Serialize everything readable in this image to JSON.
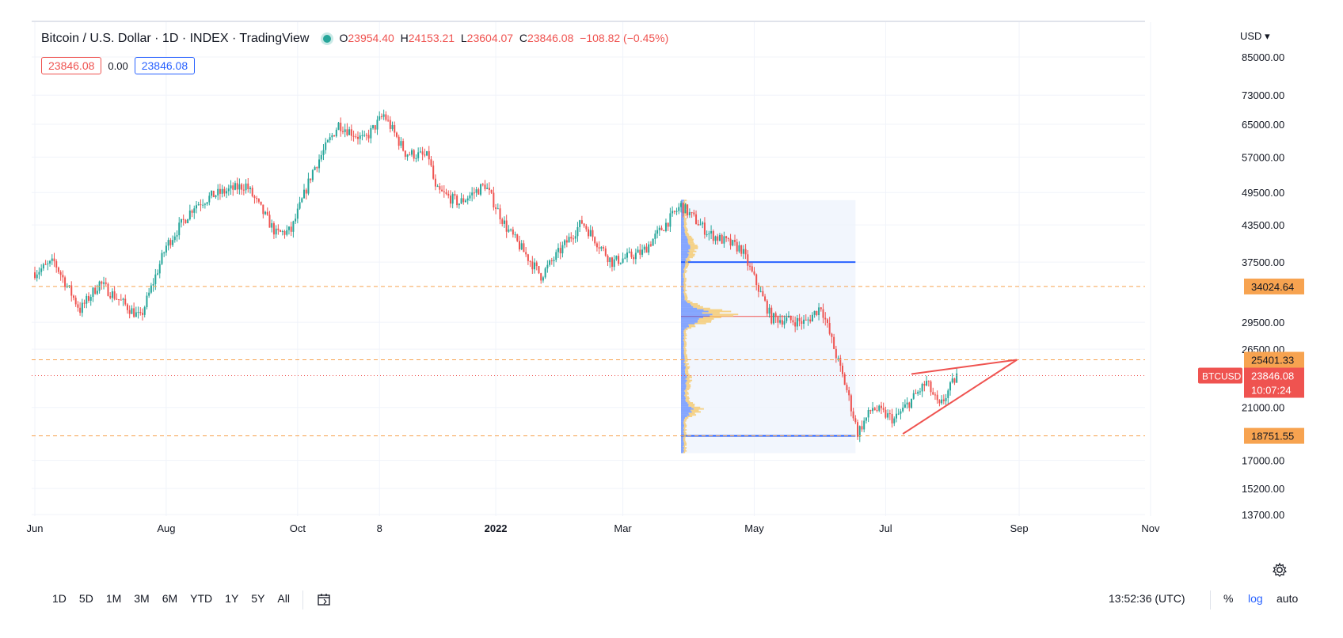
{
  "header": {
    "symbol_title": "Bitcoin / U.S. Dollar · 1D · INDEX · TradingView",
    "ohlc": {
      "o_label": "O",
      "o": "23954.40",
      "h_label": "H",
      "h": "24153.21",
      "l_label": "L",
      "l": "23604.07",
      "c_label": "C",
      "c": "23846.08",
      "change": "−108.82 (−0.45%)"
    },
    "bid": "23846.08",
    "spread": "0.00",
    "ask": "23846.08",
    "currency": "USD"
  },
  "colors": {
    "up": "#26a69a",
    "down": "#ef5350",
    "level_line": "#f7a350",
    "level_label_bg": "#f7a350",
    "profile_blue": "#2962ff",
    "profile_yellow": "#f6c45d",
    "current_price": "#ef5350"
  },
  "chart_data": {
    "type": "candlestick",
    "y_scale": "log",
    "y_ticks": [
      "85000.00",
      "73000.00",
      "65000.00",
      "57000.00",
      "49500.00",
      "43500.00",
      "37500.00",
      "29500.00",
      "26500.00",
      "21000.00",
      "17000.00",
      "15200.00",
      "13700.00"
    ],
    "x_ticks": [
      "Jun",
      "Aug",
      "Oct",
      "8",
      "2022",
      "Mar",
      "May",
      "Jul",
      "Sep",
      "Nov"
    ],
    "levels": [
      {
        "value": 34024.64,
        "label": "34024.64"
      },
      {
        "value": 25401.33,
        "label": "25401.33"
      },
      {
        "value": 18751.55,
        "label": "18751.55"
      }
    ],
    "current_price": {
      "value": 23846.08,
      "label": "23846.08",
      "symbol": "BTCUSD",
      "countdown": "10:07:24"
    },
    "price_path": [
      [
        "2021-06-01",
        36000
      ],
      [
        "2021-06-10",
        37500
      ],
      [
        "2021-06-22",
        31000
      ],
      [
        "2021-07-01",
        34500
      ],
      [
        "2021-07-20",
        30000
      ],
      [
        "2021-08-01",
        40000
      ],
      [
        "2021-08-14",
        47000
      ],
      [
        "2021-08-23",
        49000
      ],
      [
        "2021-09-07",
        51000
      ],
      [
        "2021-09-21",
        42000
      ],
      [
        "2021-09-28",
        42500
      ],
      [
        "2021-10-08",
        54000
      ],
      [
        "2021-10-20",
        65000
      ],
      [
        "2021-11-01",
        61000
      ],
      [
        "2021-11-10",
        67500
      ],
      [
        "2021-11-20",
        58000
      ],
      [
        "2021-12-01",
        57000
      ],
      [
        "2021-12-04",
        50000
      ],
      [
        "2021-12-15",
        47500
      ],
      [
        "2021-12-27",
        51000
      ],
      [
        "2022-01-06",
        43000
      ],
      [
        "2022-01-22",
        35500
      ],
      [
        "2022-02-10",
        44000
      ],
      [
        "2022-02-24",
        37500
      ],
      [
        "2022-03-10",
        39000
      ],
      [
        "2022-03-28",
        47000
      ],
      [
        "2022-04-10",
        42000
      ],
      [
        "2022-04-25",
        39500
      ],
      [
        "2022-05-09",
        30000
      ],
      [
        "2022-05-25",
        29500
      ],
      [
        "2022-06-01",
        31500
      ],
      [
        "2022-06-13",
        22500
      ],
      [
        "2022-06-18",
        19000
      ],
      [
        "2022-06-25",
        21000
      ],
      [
        "2022-07-05",
        20000
      ],
      [
        "2022-07-20",
        23200
      ],
      [
        "2022-07-26",
        21000
      ],
      [
        "2022-08-03",
        23846
      ]
    ],
    "volume_profile": {
      "top": 48000,
      "bottom": 17500,
      "upper_line": 37500,
      "lower_line": 18751.55,
      "poc": 30200
    },
    "wedge": {
      "upper_start": 24000,
      "lower_start": 18900,
      "apex": 25401.33
    }
  },
  "toolbar": {
    "ranges": [
      "1D",
      "5D",
      "1M",
      "3M",
      "6M",
      "YTD",
      "1Y",
      "5Y",
      "All"
    ],
    "clock": "13:52:36 (UTC)",
    "percent": "%",
    "log": "log",
    "auto": "auto"
  }
}
